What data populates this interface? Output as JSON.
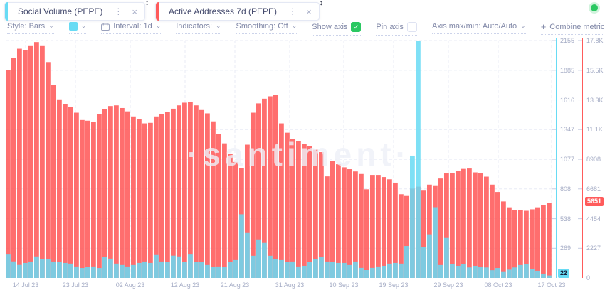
{
  "header": {
    "tabs": [
      {
        "label": "Social Volume (PEPE)",
        "accent_color": "#68DBF4"
      },
      {
        "label": "Active Addresses 7d (PEPE)",
        "accent_color": "#FF5B5B"
      }
    ],
    "status_dot_color": "#2BC862"
  },
  "icons": {
    "chevron_down": "⌄",
    "kebab": "⋮",
    "close": "×",
    "check": "✓",
    "plus": "+",
    "drag_handle": "↕"
  },
  "toolbar": {
    "style_label": "Style: Bars",
    "swatch_color": "#68DBF4",
    "interval_label": "Interval: 1d",
    "indicators_label": "Indicators:",
    "smoothing_label": "Smoothing: Off",
    "show_axis_label": "Show axis",
    "show_axis_checked": true,
    "checkbox_color": "#2BC862",
    "pin_axis_label": "Pin axis",
    "pin_axis_checked": false,
    "axis_maxmin_label": "Axis max/min: Auto/Auto",
    "combine_label": "Combine metrics"
  },
  "watermark": "·santiment·",
  "chart_data": {
    "type": "bar",
    "title": "",
    "xlabel": "",
    "ylabel": "",
    "grid": true,
    "legend_position": "none",
    "x_tick_labels": [
      "14 Jul 23",
      "23 Jul 23",
      "02 Aug 23",
      "12 Aug 23",
      "21 Aug 23",
      "31 Aug 23",
      "10 Sep 23",
      "19 Sep 23",
      "29 Sep 23",
      "08 Oct 23",
      "17 Oct 23"
    ],
    "cyan_axis_ticks": [
      "2155",
      "1885",
      "1616",
      "1347",
      "1077",
      "808",
      "538",
      "269"
    ],
    "cyan_axis_tick_values": [
      2155,
      1885,
      1616,
      1347,
      1077,
      808,
      538,
      269
    ],
    "red_axis_ticks": [
      "17.8K",
      "15.5K",
      "13.3K",
      "11.1K",
      "8908",
      "6681",
      "4454",
      "2227",
      "0"
    ],
    "cyan_badge": "22",
    "red_badge": "5651",
    "series": [
      {
        "name": "Social Volume (PEPE)",
        "color": "#68DBF4",
        "axis_max": 2155,
        "current": 22,
        "values": [
          212,
          150,
          118,
          136,
          149,
          195,
          170,
          170,
          149,
          143,
          136,
          130,
          104,
          90,
          97,
          104,
          90,
          188,
          175,
          130,
          117,
          104,
          117,
          136,
          149,
          136,
          208,
          149,
          143,
          202,
          195,
          143,
          212,
          143,
          143,
          117,
          97,
          104,
          97,
          143,
          162,
          578,
          408,
          201,
          350,
          318,
          201,
          169,
          162,
          143,
          149,
          104,
          110,
          143,
          169,
          188,
          149,
          143,
          136,
          136,
          117,
          149,
          91,
          71,
          91,
          104,
          110,
          130,
          136,
          130,
          290,
          1110,
          2155,
          280,
          396,
          642,
          117,
          363,
          123,
          110,
          125,
          95,
          110,
          100,
          95,
          70,
          90,
          60,
          75,
          95,
          117,
          123,
          84,
          65,
          39,
          22
        ]
      },
      {
        "name": "Active Addresses 7d (PEPE)",
        "color": "#FF5B5B",
        "axis_max": 17816,
        "current": 5651,
        "values": [
          15600,
          16500,
          17200,
          17100,
          17400,
          17700,
          17400,
          16200,
          14500,
          13400,
          13050,
          12820,
          12400,
          11850,
          11800,
          11700,
          12300,
          12660,
          12900,
          12950,
          12750,
          12500,
          12120,
          11900,
          11600,
          11640,
          12120,
          12300,
          12450,
          12700,
          12950,
          13150,
          13200,
          12950,
          12600,
          12350,
          11750,
          10780,
          10100,
          9300,
          8700,
          8260,
          10000,
          12400,
          13100,
          13450,
          13630,
          13740,
          11600,
          10900,
          10450,
          10250,
          10080,
          9870,
          9620,
          9440,
          7620,
          8800,
          8530,
          8300,
          8160,
          7990,
          7800,
          6650,
          7730,
          7730,
          7570,
          7400,
          7150,
          6280,
          6150,
          6700,
          6850,
          6550,
          7000,
          6950,
          7460,
          7840,
          7890,
          8050,
          8180,
          8210,
          7920,
          7840,
          7600,
          7000,
          6450,
          5740,
          5300,
          5120,
          5080,
          5040,
          5150,
          5300,
          5480,
          5651
        ]
      }
    ]
  }
}
